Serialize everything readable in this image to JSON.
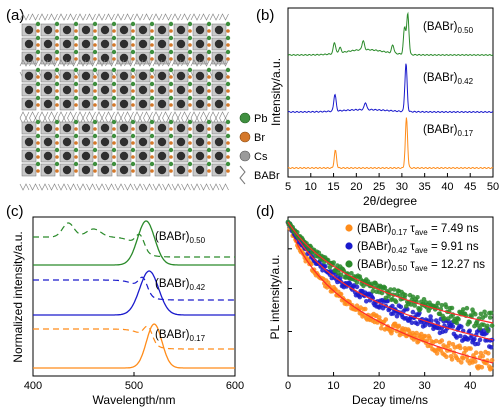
{
  "figure": {
    "panel_labels": [
      "(a)",
      "(b)",
      "(c)",
      "(d)"
    ],
    "structure_legend": [
      {
        "label": "Pb",
        "color": "#3f8f3f"
      },
      {
        "label": "Br",
        "color": "#d4782a"
      },
      {
        "label": "Cs",
        "color": "#9a9a9a"
      },
      {
        "label": "BABr",
        "color": "#777777"
      }
    ],
    "colors": {
      "x017": "#ff8c1a",
      "x042": "#1a1acc",
      "x050": "#2a8a2a",
      "fit": "#ff2a2a"
    }
  },
  "chart_data": [
    {
      "type": "line",
      "panel": "(b)",
      "xlabel": "2θ/degree",
      "ylabel": "Intensity/a.u.",
      "xlim": [
        5,
        50
      ],
      "x_ticks": [
        "5",
        "10",
        "15",
        "20",
        "25",
        "30",
        "35",
        "40",
        "45",
        "50"
      ],
      "series": [
        {
          "name": "(BABr)0.50",
          "base": "(BABr)",
          "sub": "0.50",
          "color": "#2a8a2a",
          "peaks": [
            [
              15.2,
              0.25
            ],
            [
              16.4,
              0.12
            ],
            [
              21.5,
              0.2
            ],
            [
              28.0,
              0.18
            ],
            [
              30.6,
              0.6
            ],
            [
              31.3,
              0.9
            ]
          ]
        },
        {
          "name": "(BABr)0.42",
          "base": "(BABr)",
          "sub": "0.42",
          "color": "#1a1acc",
          "peaks": [
            [
              15.3,
              0.35
            ],
            [
              22.0,
              0.15
            ],
            [
              30.9,
              1.0
            ]
          ]
        },
        {
          "name": "(BABr)0.17",
          "base": "(BABr)",
          "sub": "0.17",
          "color": "#ff8c1a",
          "peaks": [
            [
              15.4,
              0.35
            ],
            [
              31.0,
              1.0
            ]
          ]
        }
      ]
    },
    {
      "type": "line",
      "panel": "(c)",
      "xlabel": "Wavelength/nm",
      "ylabel": "Normalized intensity/a.u.",
      "xlim": [
        400,
        600
      ],
      "x_ticks": [
        "400",
        "500",
        "600"
      ],
      "series": [
        {
          "name": "(BABr)0.50",
          "base": "(BABr)",
          "sub": "0.50",
          "color": "#2a8a2a",
          "pl_peak": 512,
          "pl_fwhm": 20
        },
        {
          "name": "(BABr)0.42",
          "base": "(BABr)",
          "sub": "0.42",
          "color": "#1a1acc",
          "pl_peak": 515,
          "pl_fwhm": 22
        },
        {
          "name": "(BABr)0.17",
          "base": "(BABr)",
          "sub": "0.17",
          "color": "#ff8c1a",
          "pl_peak": 520,
          "pl_fwhm": 18
        }
      ]
    },
    {
      "type": "scatter",
      "panel": "(d)",
      "xlabel": "Decay time/ns",
      "ylabel": "PL intensity/a.u.",
      "xlim": [
        0,
        45
      ],
      "x_ticks": [
        "0",
        "10",
        "20",
        "30",
        "40"
      ],
      "y_scale": "log",
      "series": [
        {
          "name": "(BABr)0.17",
          "base": "(BABr)",
          "sub": "0.17",
          "tau_label": "τ",
          "tau_sub": "ave",
          "tau_value": "= 7.49 ns",
          "tau": 7.49,
          "color": "#ff8c1a"
        },
        {
          "name": "(BABr)0.42",
          "base": "(BABr)",
          "sub": "0.42",
          "tau_label": "τ",
          "tau_sub": "ave",
          "tau_value": "= 9.91 ns",
          "tau": 9.91,
          "color": "#1a1acc"
        },
        {
          "name": "(BABr)0.50",
          "base": "(BABr)",
          "sub": "0.50",
          "tau_label": "τ",
          "tau_sub": "ave",
          "tau_value": "= 12.27 ns",
          "tau": 12.27,
          "color": "#2a8a2a"
        }
      ]
    }
  ]
}
